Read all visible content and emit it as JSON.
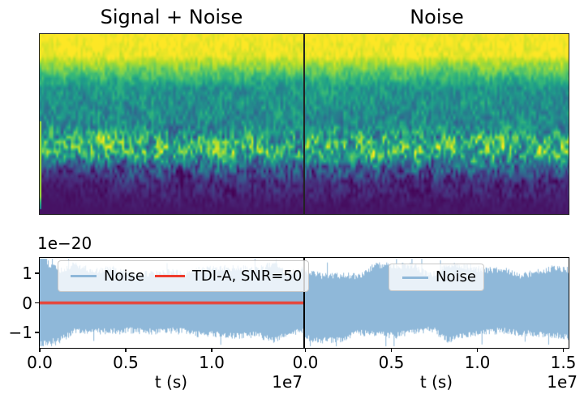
{
  "top_row": {
    "left_title": "Signal + Noise",
    "right_title": "Noise",
    "colormap": "viridis"
  },
  "bottom_left": {
    "y_offset_label": "1e−20",
    "yticks": [
      "1",
      "0",
      "−1"
    ],
    "xticks": [
      "0.0",
      "0.5",
      "1.0"
    ],
    "x_offset_label": "1e7",
    "xlabel": "t (s)",
    "legend": [
      {
        "label": "Noise",
        "color": "#8fb8d9"
      },
      {
        "label": "TDI-A, SNR=50",
        "color": "#ef3b2c"
      }
    ]
  },
  "bottom_right": {
    "xticks": [
      "0.0",
      "0.5",
      "1.0",
      "1.5"
    ],
    "x_offset_label": "1e7",
    "xlabel": "t (s)",
    "legend": [
      {
        "label": "Noise",
        "color": "#8fb8d9"
      }
    ]
  },
  "colors": {
    "noise_fill": "#8fb8d9",
    "tdi_red": "#ef3b2c",
    "spine": "#000000",
    "image_border": "#222222",
    "legend_bg": "rgba(255,255,255,0.8)",
    "legend_border": "#c9c9c9",
    "text": "#000000"
  },
  "chart_data": [
    {
      "type": "heatmap",
      "title": "Signal + Noise",
      "xlabel": "",
      "ylabel": "",
      "colormap": "viridis",
      "x_range_s": [
        0,
        15500000
      ],
      "axes_visible": false,
      "description": "Spectrogram of signal plus noise: solid high-power yellow band across the top (~0-15% height), fading through green to teal (~15-30%), speckled teal region (~30-52%), dense speckled yellow band (~52-72%), then dark purple with sparse teal speckles toward the bottom; smooth dark-purple low-power region curving up from the bottom-left corner.",
      "value_profile_top_to_bottom": [
        1.0,
        0.97,
        0.52,
        0.47,
        0.62,
        0.66,
        0.3,
        0.12,
        0.08,
        0.06
      ]
    },
    {
      "type": "heatmap",
      "title": "Noise",
      "xlabel": "",
      "ylabel": "",
      "colormap": "viridis",
      "x_range_s": [
        0,
        15500000
      ],
      "axes_visible": false,
      "description": "Spectrogram of noise only: same banded structure as the left panel (yellow top band, teal speckle, speckled yellow band, dark purple bottom) but without the smooth dark corner feature.",
      "value_profile_top_to_bottom": [
        1.0,
        0.97,
        0.52,
        0.47,
        0.62,
        0.66,
        0.3,
        0.12,
        0.08,
        0.06
      ]
    },
    {
      "type": "line",
      "title": "",
      "xlabel": "t (s)",
      "x_offset_factor": "1e7",
      "y_offset_factor": "1e−20",
      "xlim": [
        0,
        15400000
      ],
      "ylim": [
        -1.55e-20,
        1.55e-20
      ],
      "xticks": [
        0.0,
        0.5,
        1.0
      ],
      "yticks": [
        1,
        0,
        -1
      ],
      "grid": false,
      "legend_position": "upper left",
      "series": [
        {
          "name": "Noise",
          "color": "#8fb8d9",
          "kind": "dense stochastic noise band (filled)",
          "approx_amplitude": 1.15e-20,
          "note": "larger excursions near t=0"
        },
        {
          "name": "TDI-A, SNR=50",
          "color": "#ef3b2c",
          "kind": "signal, visually constant",
          "value": 0
        }
      ]
    },
    {
      "type": "line",
      "title": "",
      "xlabel": "t (s)",
      "x_offset_factor": "1e7",
      "xlim": [
        0,
        15600000
      ],
      "ylim": [
        -1.55e-20,
        1.55e-20
      ],
      "xticks": [
        0.0,
        0.5,
        1.0,
        1.5
      ],
      "yticks": [],
      "grid": false,
      "legend_position": "upper center",
      "series": [
        {
          "name": "Noise",
          "color": "#8fb8d9",
          "kind": "dense stochastic noise band (filled)",
          "approx_amplitude": 1.15e-20
        }
      ]
    }
  ]
}
